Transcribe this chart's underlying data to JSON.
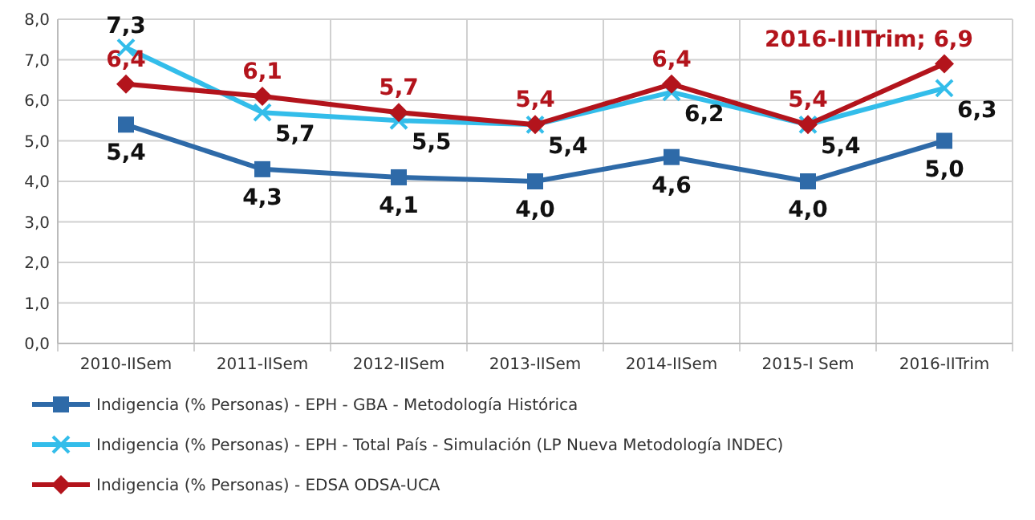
{
  "chart_data": {
    "type": "line",
    "categories": [
      "2010-IISem",
      "2011-IISem",
      "2012-IISem",
      "2013-IISem",
      "2014-IISem",
      "2015-I Sem",
      "2016-IITrim"
    ],
    "ylim": [
      0,
      8
    ],
    "yticks": [
      {
        "value": 0,
        "label": "0,0"
      },
      {
        "value": 1,
        "label": "1,0"
      },
      {
        "value": 2,
        "label": "2,0"
      },
      {
        "value": 3,
        "label": "3,0"
      },
      {
        "value": 4,
        "label": "4,0"
      },
      {
        "value": 5,
        "label": "5,0"
      },
      {
        "value": 6,
        "label": "6,0"
      },
      {
        "value": 7,
        "label": "7,0"
      },
      {
        "value": 8,
        "label": "8,0"
      }
    ],
    "grid": true,
    "legend": "bottom",
    "series": [
      {
        "name": "Indigencia (% Personas) - EPH - GBA - Metodología Histórica",
        "color": "#2e6aa8",
        "marker": "square",
        "values": [
          5.4,
          4.3,
          4.1,
          4.0,
          4.6,
          4.0,
          5.0
        ],
        "value_labels": [
          "5,4",
          "4,3",
          "4,1",
          "4,0",
          "4,6",
          "4,0",
          "5,0"
        ]
      },
      {
        "name": "Indigencia (% Personas) - EPH - Total País - Simulación (LP Nueva Metodología INDEC)",
        "color": "#33bdea",
        "marker": "cross",
        "values": [
          7.3,
          5.7,
          5.5,
          5.4,
          6.2,
          5.4,
          6.3
        ],
        "value_labels": [
          "7,3",
          "5,7",
          "5,5",
          "5,4",
          "6,2",
          "5,4",
          "6,3"
        ]
      },
      {
        "name": "Indigencia (% Personas) - EDSA ODSA-UCA",
        "color": "#b3141c",
        "marker": "diamond",
        "values": [
          6.4,
          6.1,
          5.7,
          5.4,
          6.4,
          5.4,
          6.9
        ],
        "value_labels": [
          "6,4",
          "6,1",
          "5,7",
          "5,4",
          "6,4",
          "5,4",
          "2016-IIITrim; 6,9"
        ]
      }
    ]
  }
}
